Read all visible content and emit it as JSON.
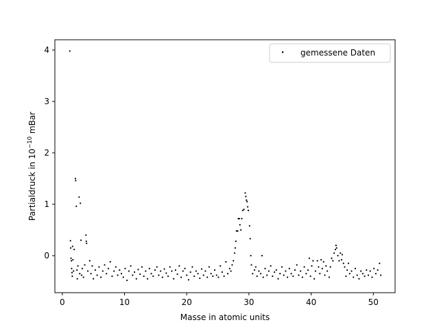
{
  "chart_data": {
    "type": "scatter",
    "title": "",
    "xlabel": "Masse in atomic units",
    "ylabel_main": "Partialdruck in 10",
    "ylabel_exp": "−10",
    "ylabel_unit": " mBar",
    "xlim": [
      -1.2,
      53.5
    ],
    "ylim": [
      -0.72,
      4.2
    ],
    "xticks": [
      0,
      10,
      20,
      30,
      40,
      50
    ],
    "yticks": [
      0,
      1,
      2,
      3,
      4
    ],
    "xtick_labels": [
      "0",
      "10",
      "20",
      "30",
      "40",
      "50"
    ],
    "ytick_labels": [
      "0",
      "1",
      "2",
      "3",
      "4"
    ],
    "grid": false,
    "legend_position": "top-right",
    "marker_color": "#000000",
    "series": [
      {
        "name": "gemessene Daten",
        "points": [
          [
            1.2,
            3.98
          ],
          [
            1.3,
            0.29
          ],
          [
            1.35,
            0.15
          ],
          [
            1.4,
            -0.05
          ],
          [
            1.45,
            -0.1
          ],
          [
            1.5,
            -0.25
          ],
          [
            1.55,
            -0.33
          ],
          [
            1.6,
            -0.4
          ],
          [
            1.65,
            0.18
          ],
          [
            1.7,
            -0.08
          ],
          [
            1.8,
            -0.3
          ],
          [
            1.9,
            0.12
          ],
          [
            2.1,
            1.5
          ],
          [
            2.15,
            1.46
          ],
          [
            2.25,
            0.96
          ],
          [
            2.35,
            -0.28
          ],
          [
            2.4,
            -0.45
          ],
          [
            2.5,
            -0.2
          ],
          [
            2.7,
            1.14
          ],
          [
            2.8,
            -0.35
          ],
          [
            2.9,
            1.02
          ],
          [
            3.0,
            0.3
          ],
          [
            3.1,
            -0.38
          ],
          [
            3.2,
            -0.25
          ],
          [
            3.4,
            -0.42
          ],
          [
            3.6,
            -0.18
          ],
          [
            3.8,
            0.4
          ],
          [
            3.85,
            0.28
          ],
          [
            3.9,
            0.24
          ],
          [
            4.1,
            -0.3
          ],
          [
            4.4,
            -0.1
          ],
          [
            4.6,
            -0.35
          ],
          [
            4.8,
            -0.2
          ],
          [
            5.0,
            -0.45
          ],
          [
            5.3,
            -0.28
          ],
          [
            5.6,
            -0.38
          ],
          [
            5.9,
            -0.22
          ],
          [
            6.2,
            -0.42
          ],
          [
            6.5,
            -0.3
          ],
          [
            6.8,
            -0.18
          ],
          [
            7.1,
            -0.35
          ],
          [
            7.4,
            -0.25
          ],
          [
            7.7,
            -0.12
          ],
          [
            8.0,
            -0.4
          ],
          [
            8.3,
            -0.3
          ],
          [
            8.6,
            -0.22
          ],
          [
            8.9,
            -0.38
          ],
          [
            9.2,
            -0.28
          ],
          [
            9.5,
            -0.35
          ],
          [
            9.8,
            -0.42
          ],
          [
            10.1,
            -0.25
          ],
          [
            10.4,
            -0.48
          ],
          [
            10.7,
            -0.3
          ],
          [
            11.0,
            -0.2
          ],
          [
            11.3,
            -0.38
          ],
          [
            11.6,
            -0.32
          ],
          [
            11.9,
            -0.45
          ],
          [
            12.2,
            -0.27
          ],
          [
            12.5,
            -0.36
          ],
          [
            12.8,
            -0.22
          ],
          [
            13.1,
            -0.4
          ],
          [
            13.4,
            -0.3
          ],
          [
            13.7,
            -0.45
          ],
          [
            14.0,
            -0.25
          ],
          [
            14.3,
            -0.35
          ],
          [
            14.6,
            -0.4
          ],
          [
            14.9,
            -0.28
          ],
          [
            15.2,
            -0.22
          ],
          [
            15.5,
            -0.38
          ],
          [
            15.8,
            -0.3
          ],
          [
            16.1,
            -0.42
          ],
          [
            16.4,
            -0.26
          ],
          [
            16.7,
            -0.34
          ],
          [
            17.0,
            -0.4
          ],
          [
            17.3,
            -0.22
          ],
          [
            17.6,
            -0.3
          ],
          [
            17.9,
            -0.45
          ],
          [
            18.2,
            -0.28
          ],
          [
            18.5,
            -0.36
          ],
          [
            18.8,
            -0.2
          ],
          [
            19.1,
            -0.42
          ],
          [
            19.4,
            -0.3
          ],
          [
            19.7,
            -0.25
          ],
          [
            20.0,
            -0.38
          ],
          [
            20.3,
            -0.47
          ],
          [
            20.6,
            -0.32
          ],
          [
            20.9,
            -0.22
          ],
          [
            21.2,
            -0.4
          ],
          [
            21.5,
            -0.3
          ],
          [
            21.8,
            -0.35
          ],
          [
            22.1,
            -0.44
          ],
          [
            22.4,
            -0.26
          ],
          [
            22.7,
            -0.38
          ],
          [
            23.0,
            -0.3
          ],
          [
            23.3,
            -0.42
          ],
          [
            23.6,
            -0.22
          ],
          [
            23.9,
            -0.35
          ],
          [
            24.2,
            -0.4
          ],
          [
            24.5,
            -0.28
          ],
          [
            24.8,
            -0.38
          ],
          [
            25.1,
            -0.42
          ],
          [
            25.4,
            -0.2
          ],
          [
            25.7,
            -0.32
          ],
          [
            26.0,
            -0.4
          ],
          [
            26.3,
            -0.12
          ],
          [
            26.6,
            -0.35
          ],
          [
            26.9,
            -0.25
          ],
          [
            27.1,
            -0.3
          ],
          [
            27.3,
            -0.18
          ],
          [
            27.5,
            -0.1
          ],
          [
            27.7,
            0.05
          ],
          [
            27.8,
            0.15
          ],
          [
            27.9,
            0.28
          ],
          [
            28.0,
            0.48
          ],
          [
            28.2,
            0.48
          ],
          [
            28.3,
            0.72
          ],
          [
            28.45,
            0.72
          ],
          [
            28.55,
            0.6
          ],
          [
            28.7,
            0.5
          ],
          [
            28.85,
            0.72
          ],
          [
            29.0,
            0.88
          ],
          [
            29.2,
            0.9
          ],
          [
            29.4,
            1.22
          ],
          [
            29.5,
            1.15
          ],
          [
            29.6,
            1.08
          ],
          [
            29.7,
            1.05
          ],
          [
            29.8,
            0.95
          ],
          [
            29.9,
            0.88
          ],
          [
            30.1,
            0.58
          ],
          [
            30.2,
            0.33
          ],
          [
            30.3,
            0.0
          ],
          [
            30.4,
            -0.18
          ],
          [
            30.6,
            -0.35
          ],
          [
            30.9,
            -0.28
          ],
          [
            31.1,
            -0.22
          ],
          [
            31.3,
            -0.4
          ],
          [
            31.6,
            -0.3
          ],
          [
            31.9,
            -0.35
          ],
          [
            32.1,
            0.0
          ],
          [
            32.3,
            -0.42
          ],
          [
            32.6,
            -0.25
          ],
          [
            32.9,
            -0.38
          ],
          [
            33.2,
            -0.3
          ],
          [
            33.5,
            -0.2
          ],
          [
            33.8,
            -0.4
          ],
          [
            34.1,
            -0.32
          ],
          [
            34.4,
            -0.28
          ],
          [
            34.7,
            -0.45
          ],
          [
            35.0,
            -0.35
          ],
          [
            35.3,
            -0.22
          ],
          [
            35.6,
            -0.38
          ],
          [
            35.9,
            -0.3
          ],
          [
            36.2,
            -0.42
          ],
          [
            36.5,
            -0.25
          ],
          [
            36.8,
            -0.35
          ],
          [
            37.1,
            -0.4
          ],
          [
            37.4,
            -0.28
          ],
          [
            37.7,
            -0.18
          ],
          [
            38.0,
            -0.38
          ],
          [
            38.3,
            -0.3
          ],
          [
            38.6,
            -0.42
          ],
          [
            38.9,
            -0.22
          ],
          [
            39.2,
            -0.35
          ],
          [
            39.5,
            -0.28
          ],
          [
            39.7,
            -0.05
          ],
          [
            39.9,
            -0.4
          ],
          [
            40.1,
            -0.2
          ],
          [
            40.3,
            -0.1
          ],
          [
            40.5,
            -0.45
          ],
          [
            40.7,
            -0.3
          ],
          [
            41.0,
            -0.1
          ],
          [
            41.2,
            -0.22
          ],
          [
            41.4,
            -0.35
          ],
          [
            41.6,
            -0.08
          ],
          [
            41.8,
            -0.25
          ],
          [
            42.0,
            -0.12
          ],
          [
            42.2,
            -0.38
          ],
          [
            42.4,
            -0.2
          ],
          [
            42.6,
            -0.3
          ],
          [
            42.9,
            -0.42
          ],
          [
            43.1,
            -0.22
          ],
          [
            43.3,
            -0.05
          ],
          [
            43.5,
            -0.1
          ],
          [
            43.7,
            0.05
          ],
          [
            43.9,
            0.12
          ],
          [
            44.0,
            0.2
          ],
          [
            44.1,
            0.15
          ],
          [
            44.3,
            0.0
          ],
          [
            44.5,
            -0.1
          ],
          [
            44.7,
            0.05
          ],
          [
            44.9,
            -0.08
          ],
          [
            45.0,
            0.02
          ],
          [
            45.2,
            -0.15
          ],
          [
            45.4,
            -0.22
          ],
          [
            45.6,
            -0.4
          ],
          [
            45.8,
            -0.28
          ],
          [
            46.0,
            -0.15
          ],
          [
            46.2,
            -0.35
          ],
          [
            46.5,
            -0.3
          ],
          [
            46.8,
            -0.42
          ],
          [
            47.1,
            -0.25
          ],
          [
            47.4,
            -0.38
          ],
          [
            47.7,
            -0.45
          ],
          [
            48.0,
            -0.3
          ],
          [
            48.3,
            -0.35
          ],
          [
            48.6,
            -0.4
          ],
          [
            48.9,
            -0.28
          ],
          [
            49.2,
            -0.38
          ],
          [
            49.5,
            -0.3
          ],
          [
            49.8,
            -0.42
          ],
          [
            50.1,
            -0.25
          ],
          [
            50.4,
            -0.35
          ],
          [
            50.7,
            -0.28
          ],
          [
            51.0,
            -0.15
          ],
          [
            51.2,
            -0.38
          ]
        ]
      }
    ]
  }
}
